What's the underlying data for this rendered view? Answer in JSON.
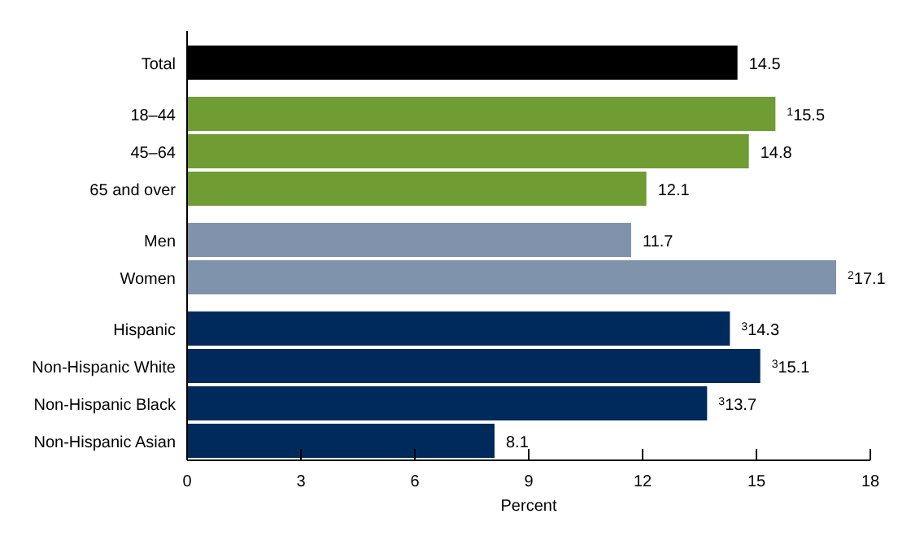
{
  "chart_data": {
    "type": "bar",
    "orientation": "horizontal",
    "xlabel": "Percent",
    "categories": [
      "Total",
      "18–44",
      "45–64",
      "65 and over",
      "Men",
      "Women",
      "Hispanic",
      "Non-Hispanic White",
      "Non-Hispanic Black",
      "Non-Hispanic Asian"
    ],
    "values": [
      14.5,
      15.5,
      14.8,
      12.1,
      11.7,
      17.1,
      14.3,
      15.1,
      13.7,
      8.1
    ],
    "colors": [
      "#000000",
      "#6f9c33",
      "#6f9c33",
      "#6f9c33",
      "#8093ad",
      "#8093ad",
      "#002a5c",
      "#002a5c",
      "#002a5c",
      "#002a5c"
    ],
    "value_labels": [
      "14.5",
      "$^{1}$15.5",
      "14.8",
      "12.1",
      "11.7",
      "$^{2}$17.1",
      "$^{3}$14.3",
      "$^{3}$15.1",
      "$^{3}$13.7",
      "8.1"
    ],
    "xlim": [
      0,
      18
    ],
    "xticks": [
      0,
      3,
      6,
      9,
      12,
      15,
      18
    ]
  }
}
